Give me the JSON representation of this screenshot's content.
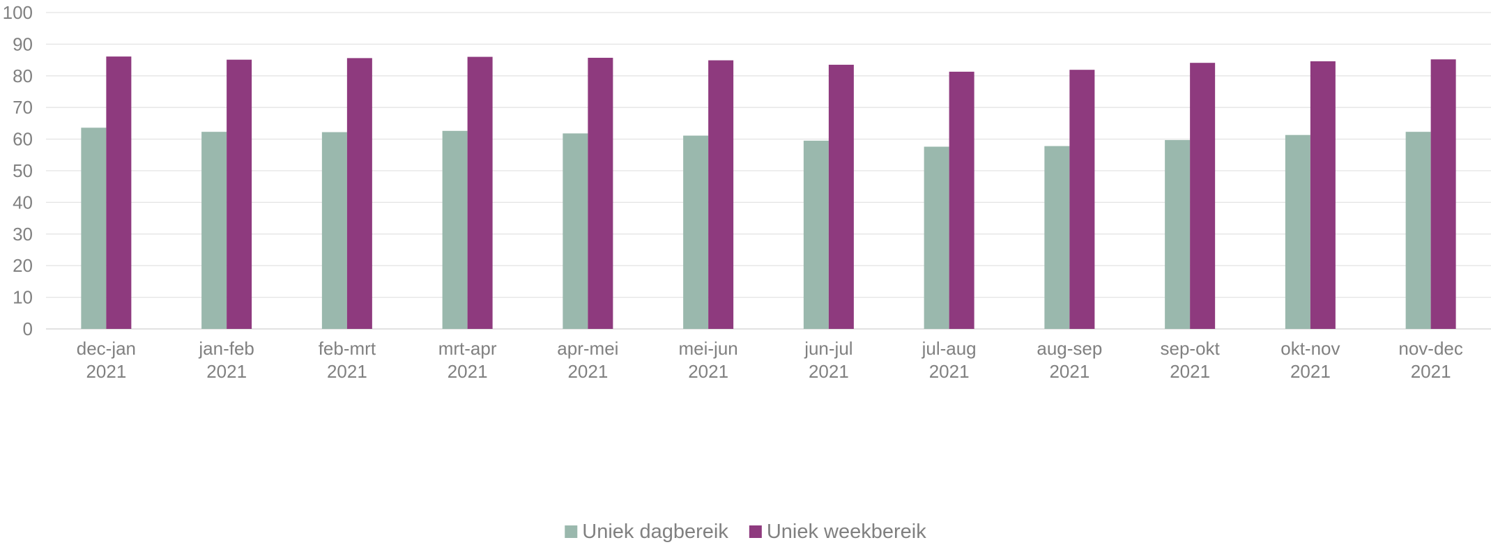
{
  "chart_data": {
    "type": "bar",
    "title": "",
    "xlabel": "",
    "ylabel": "",
    "ylim": [
      0,
      100
    ],
    "yticks": [
      0,
      10,
      20,
      30,
      40,
      50,
      60,
      70,
      80,
      90,
      100
    ],
    "grid": true,
    "legend_position": "bottom",
    "categories": [
      [
        "dec-jan",
        "2021"
      ],
      [
        "jan-feb",
        "2021"
      ],
      [
        "feb-mrt",
        "2021"
      ],
      [
        "mrt-apr",
        "2021"
      ],
      [
        "apr-mei",
        "2021"
      ],
      [
        "mei-jun",
        "2021"
      ],
      [
        "jun-jul",
        "2021"
      ],
      [
        "jul-aug",
        "2021"
      ],
      [
        "aug-sep",
        "2021"
      ],
      [
        "sep-okt",
        "2021"
      ],
      [
        "okt-nov",
        "2021"
      ],
      [
        "nov-dec",
        "2021"
      ]
    ],
    "series": [
      {
        "name": "Uniek dagbereik",
        "color": "#9ab8ad",
        "values": [
          63.6,
          62.3,
          62.2,
          62.6,
          61.8,
          61.1,
          59.5,
          57.6,
          57.8,
          59.7,
          61.3,
          62.3
        ]
      },
      {
        "name": "Uniek weekbereik",
        "color": "#8e3a7e",
        "values": [
          86.1,
          85.1,
          85.6,
          86.0,
          85.7,
          84.9,
          83.5,
          81.3,
          81.9,
          84.1,
          84.6,
          85.2
        ]
      }
    ]
  }
}
